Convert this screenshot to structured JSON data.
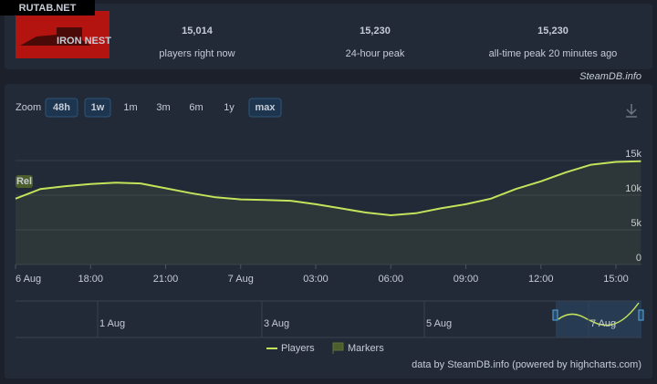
{
  "watermark": "RUTAB.NET",
  "game": {
    "logo_text": "IRON NEST"
  },
  "stats": [
    {
      "value": "15,014",
      "label": "players right now"
    },
    {
      "value": "15,230",
      "label": "24-hour peak"
    },
    {
      "value": "15,230",
      "label": "all-time peak 20 minutes ago"
    }
  ],
  "source": "SteamDB.info",
  "zoom": {
    "label": "Zoom",
    "buttons": [
      {
        "label": "48h",
        "active": true
      },
      {
        "label": "1w",
        "active": true
      },
      {
        "label": "1m",
        "active": false
      },
      {
        "label": "3m",
        "active": false
      },
      {
        "label": "6m",
        "active": false
      },
      {
        "label": "1y",
        "active": false
      },
      {
        "label": "max",
        "active": true
      }
    ]
  },
  "chart_data": {
    "type": "line",
    "categories": [
      "6 Aug",
      null,
      null,
      "18:00",
      null,
      null,
      "21:00",
      null,
      null,
      "7 Aug",
      null,
      null,
      "03:00",
      null,
      null,
      "06:00",
      null,
      null,
      "09:00",
      null,
      null,
      "12:00",
      null,
      null,
      "15:00",
      null
    ],
    "series": [
      {
        "name": "Players",
        "color": "#c3e35a",
        "values": [
          9500,
          10900,
          11300,
          11600,
          11800,
          11700,
          11000,
          10300,
          9700,
          9400,
          9300,
          9200,
          8700,
          8100,
          7500,
          7100,
          7400,
          8100,
          8700,
          9500,
          10900,
          12000,
          13300,
          14400,
          14800,
          14900
        ]
      }
    ],
    "ylim": [
      0,
      20000
    ],
    "yticks": [
      0,
      {
        "value": 5000,
        "label": "5k"
      },
      {
        "value": 10000,
        "label": "10k"
      },
      {
        "value": 15000,
        "label": "15k"
      }
    ],
    "grid": true
  },
  "marker_label": "Rel",
  "legend_markers": "Markers",
  "navigator_labels": [
    "1 Aug",
    "3 Aug",
    "5 Aug",
    "7 Aug"
  ],
  "credits": "data by SteamDB.info (powered by highcharts.com)"
}
